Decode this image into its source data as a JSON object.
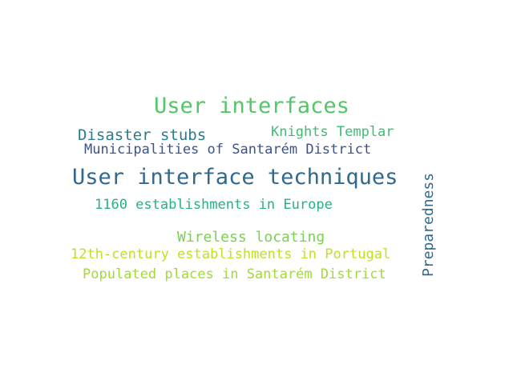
{
  "word_cloud": {
    "words": [
      {
        "id": "w1",
        "text": "User interfaces",
        "color": "#55c667"
      },
      {
        "id": "w2",
        "text": "Disaster stubs",
        "color": "#2b7b8e"
      },
      {
        "id": "w3",
        "text": "Knights Templar",
        "color": "#3fbc73"
      },
      {
        "id": "w4",
        "text": "Municipalities of Santarém District",
        "color": "#3b528b"
      },
      {
        "id": "w5",
        "text": "User interface techniques",
        "color": "#31688e"
      },
      {
        "id": "w6",
        "text": "1160 establishments in Europe",
        "color": "#2ab07f"
      },
      {
        "id": "w7",
        "text": "Wireless locating",
        "color": "#7ad151"
      },
      {
        "id": "w8",
        "text": "12th-century establishments in Portugal",
        "color": "#c2df23"
      },
      {
        "id": "w9",
        "text": "Populated places in Santarém District",
        "color": "#a2da37"
      },
      {
        "id": "w10",
        "text": "Preparedness",
        "color": "#30698e"
      }
    ]
  }
}
